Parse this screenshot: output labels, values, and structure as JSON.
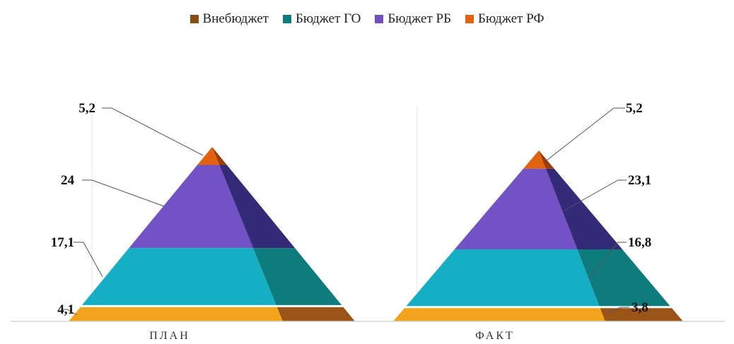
{
  "chart_data": {
    "type": "pyramid",
    "categories": [
      "ПЛАН",
      "ФАКТ"
    ],
    "series": [
      {
        "name": "Внебюджет",
        "color": "#9a5418",
        "values": [
          4.1,
          3.8
        ]
      },
      {
        "name": "Бюджет ГО",
        "color": "#0e7b7c",
        "values": [
          17.1,
          16.8
        ]
      },
      {
        "name": "Бюджет РБ",
        "color": "#6f4fc2",
        "values": [
          24,
          23.1
        ]
      },
      {
        "name": "Бюджет РФ",
        "color": "#e2630f",
        "values": [
          5.2,
          5.2
        ]
      }
    ],
    "data_labels": [
      [
        "4,1",
        "17,1",
        "24",
        "5,2"
      ],
      [
        "3,8",
        "16,8",
        "23,1",
        "5,2"
      ]
    ],
    "legend_position": "top",
    "grid": false
  }
}
